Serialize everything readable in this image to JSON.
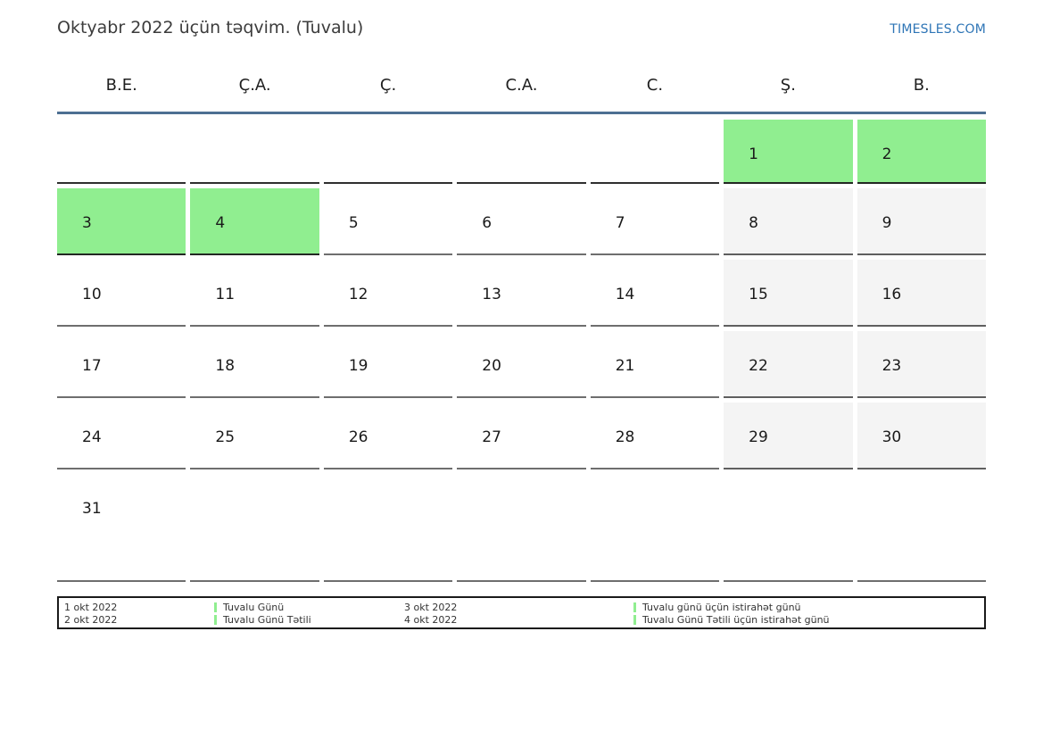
{
  "page": {
    "title": "Oktyabr 2022 üçün təqvim. (Tuvalu)",
    "site_link": "TIMESLES.COM"
  },
  "calendar": {
    "day_headers": [
      "B.E.",
      "Ç.A.",
      "Ç.",
      "C.A.",
      "C.",
      "Ş.",
      "B."
    ],
    "weeks": [
      [
        "",
        "",
        "",
        "",
        "",
        "1",
        "2"
      ],
      [
        "3",
        "4",
        "5",
        "6",
        "7",
        "8",
        "9"
      ],
      [
        "10",
        "11",
        "12",
        "13",
        "14",
        "15",
        "16"
      ],
      [
        "17",
        "18",
        "19",
        "20",
        "21",
        "22",
        "23"
      ],
      [
        "24",
        "25",
        "26",
        "27",
        "28",
        "29",
        "30"
      ],
      [
        "31",
        "",
        "",
        "",
        "",
        "",
        ""
      ]
    ],
    "highlighted_days": {
      "holiday_green": [
        1,
        2,
        3,
        4
      ],
      "weekend_gray": [
        8,
        9,
        15,
        16,
        22,
        23,
        29,
        30
      ]
    }
  },
  "legend": {
    "groups": [
      {
        "has_bars": false,
        "lines": [
          "1 okt 2022",
          "2 okt 2022"
        ]
      },
      {
        "has_bars": true,
        "lines": [
          "Tuvalu Günü",
          "Tuvalu Günü Tətili"
        ]
      },
      {
        "has_bars": false,
        "lines": [
          "3 okt 2022",
          "4 okt 2022"
        ]
      },
      {
        "has_bars": true,
        "lines": [
          "Tuvalu günü üçün istirahət günü",
          "Tuvalu Günü Tətili üçün istirahət günü"
        ]
      }
    ]
  },
  "colors": {
    "holiday_green": "#90EE90",
    "weekend_gray": "#f4f4f4",
    "header_rule_blue": "#4d6f92",
    "link_blue": "#2e75b6"
  }
}
